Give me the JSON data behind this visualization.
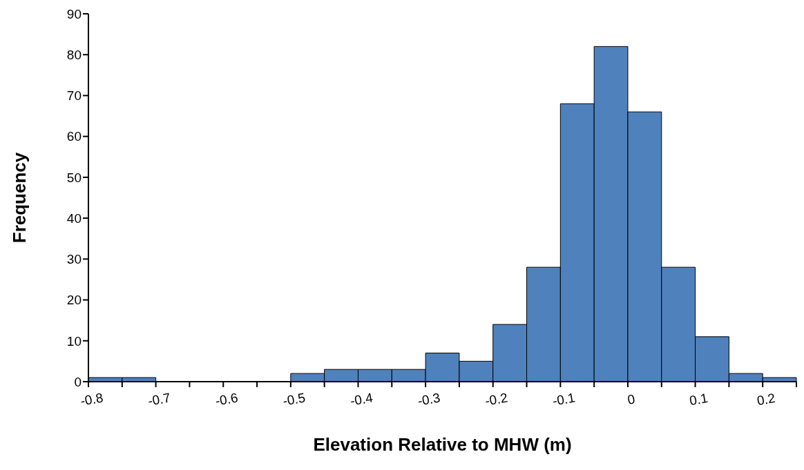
{
  "chart_data": {
    "type": "histogram",
    "xlabel": "Elevation Relative to MHW (m)",
    "ylabel": "Frequency",
    "bins": [
      -0.8,
      -0.75,
      -0.7,
      -0.65,
      -0.6,
      -0.55,
      -0.5,
      -0.45,
      -0.4,
      -0.35,
      -0.3,
      -0.25,
      -0.2,
      -0.15,
      -0.1,
      -0.05,
      0,
      0.05,
      0.1,
      0.15,
      0.2,
      0.25
    ],
    "values": [
      1,
      1,
      0,
      0,
      0,
      0,
      2,
      3,
      3,
      3,
      7,
      5,
      14,
      28,
      68,
      82,
      66,
      28,
      11,
      2,
      1
    ],
    "color": "#4f81bd",
    "xlim": [
      -0.8,
      0.25
    ],
    "xticks": [
      -0.8,
      {
        "value": -0.75,
        "label": null
      },
      -0.7,
      {
        "value": -0.65,
        "label": null
      },
      -0.6,
      {
        "value": -0.55,
        "label": null
      },
      -0.5,
      {
        "value": -0.45,
        "label": null
      },
      -0.4,
      {
        "value": -0.35,
        "label": null
      },
      -0.3,
      {
        "value": -0.25,
        "label": null
      },
      -0.2,
      {
        "value": -0.15,
        "label": null
      },
      -0.1,
      {
        "value": -0.05,
        "label": null
      },
      0,
      {
        "value": 0.05,
        "label": null
      },
      0.1,
      {
        "value": 0.15,
        "label": null
      },
      0.2,
      {
        "value": 0.25,
        "label": null
      }
    ],
    "ylim": [
      0,
      90
    ],
    "yticks": [
      0,
      10,
      20,
      30,
      40,
      50,
      60,
      70,
      80,
      90
    ],
    "grid": false
  }
}
